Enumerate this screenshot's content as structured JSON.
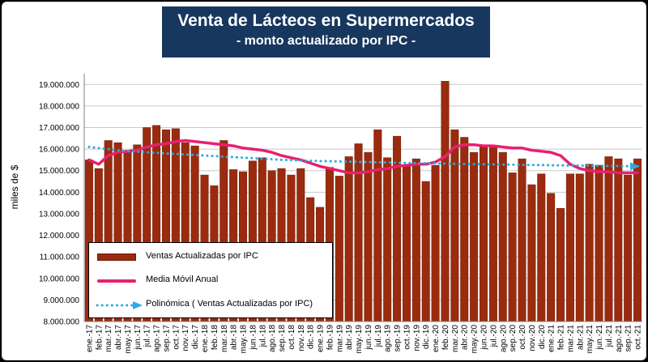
{
  "title": "Venta de Lácteos en Supermercados",
  "subtitle": "- monto actualizado por IPC -",
  "colors": {
    "bars": "#9b2b0e",
    "bar_edge": "#6d1c06",
    "moving_avg": "#e8206f",
    "trend": "#29abe2",
    "title_bg": "#17375e"
  },
  "legend": {
    "bars_label": "Ventas Actualizadas por IPC",
    "moving_avg_label": "Media Móvil Anual",
    "trend_label": "Polinómica ( Ventas Actualizadas por IPC)"
  },
  "chart_data": {
    "type": "bar",
    "title": "Venta de Lácteos en Supermercados",
    "subtitle": "- monto actualizado por IPC -",
    "xlabel": "",
    "ylabel": "miles de $",
    "ylim": [
      8000000,
      19500000
    ],
    "yticks": [
      8000000,
      9000000,
      10000000,
      11000000,
      12000000,
      13000000,
      14000000,
      15000000,
      16000000,
      17000000,
      18000000,
      19000000
    ],
    "ytick_labels": [
      "8.000.000",
      "9.000.000",
      "10.000.000",
      "11.000.000",
      "12.000.000",
      "13.000.000",
      "14.000.000",
      "15.000.000",
      "16.000.000",
      "17.000.000",
      "18.000.000",
      "19.000.000"
    ],
    "grid": true,
    "legend_position": "bottom-left",
    "categories": [
      "ene.-17",
      "feb.-17",
      "mar.-17",
      "abr.-17",
      "may.-17",
      "jun.-17",
      "jul.-17",
      "ago.-17",
      "sep.-17",
      "oct.-17",
      "nov.-17",
      "dic.-17",
      "ene.-18",
      "feb.-18",
      "mar.-18",
      "abr.-18",
      "may.-18",
      "jun.-18",
      "jul.-18",
      "ago.-18",
      "sep.-18",
      "oct.-18",
      "nov.-18",
      "dic.-18",
      "ene.-19",
      "feb.-19",
      "mar.-19",
      "abr.-19",
      "may.-19",
      "jun.-19",
      "jul.-19",
      "ago.-19",
      "sep.-19",
      "oct.-19",
      "nov.-19",
      "dic.-19",
      "ene.-20",
      "feb.-20",
      "mar.-20",
      "abr.-20",
      "may.-20",
      "jun.-20",
      "jul.-20",
      "ago.-20",
      "sep.-20",
      "oct.-20",
      "nov.-20",
      "dic.-20",
      "ene.-21",
      "feb.-21",
      "mar.-21",
      "abr.-21",
      "may.-21",
      "jun.-21",
      "jul.-21",
      "ago.-21",
      "sep.-21",
      "oct.-21"
    ],
    "series": [
      {
        "name": "Ventas Actualizadas por IPC",
        "type": "bar",
        "values": [
          15500000,
          15100000,
          16400000,
          16300000,
          15900000,
          16200000,
          17000000,
          17100000,
          16900000,
          16950000,
          16300000,
          16150000,
          14800000,
          14300000,
          16400000,
          15050000,
          14950000,
          15450000,
          15600000,
          15000000,
          15100000,
          14800000,
          15100000,
          13750000,
          13300000,
          15150000,
          14750000,
          15650000,
          16250000,
          15850000,
          16900000,
          15600000,
          16600000,
          15250000,
          15550000,
          14500000,
          15250000,
          19150000,
          16900000,
          16550000,
          15850000,
          16150000,
          16150000,
          15850000,
          14900000,
          15550000,
          14350000,
          14850000,
          13950000,
          13250000,
          14850000,
          14850000,
          15300000,
          15250000,
          15650000,
          15550000,
          14800000,
          15550000
        ]
      },
      {
        "name": "Media Móvil Anual",
        "type": "line",
        "values": [
          15500000,
          15300000,
          15700000,
          15850000,
          15900000,
          15950000,
          16100000,
          16200000,
          16250000,
          16350000,
          16400000,
          16350000,
          16300000,
          16250000,
          16200000,
          16150000,
          16050000,
          16000000,
          15950000,
          15850000,
          15700000,
          15600000,
          15500000,
          15350000,
          15200000,
          15100000,
          15000000,
          14900000,
          14900000,
          14950000,
          15050000,
          15100000,
          15200000,
          15250000,
          15300000,
          15300000,
          15400000,
          15650000,
          16100000,
          16200000,
          16200000,
          16150000,
          16150000,
          16100000,
          16050000,
          16050000,
          15950000,
          15900000,
          15850000,
          15700000,
          15300000,
          15100000,
          15000000,
          14950000,
          14950000,
          14900000,
          14900000,
          14900000
        ]
      },
      {
        "name": "Polinómica ( Ventas Actualizadas por IPC)",
        "type": "trendline",
        "values": [
          16100000,
          16050000,
          16000000,
          15950000,
          15900000,
          15880000,
          15850000,
          15830000,
          15800000,
          15780000,
          15750000,
          15730000,
          15700000,
          15680000,
          15650000,
          15630000,
          15600000,
          15580000,
          15550000,
          15530000,
          15500000,
          15490000,
          15470000,
          15460000,
          15450000,
          15440000,
          15430000,
          15420000,
          15410000,
          15400000,
          15390000,
          15380000,
          15370000,
          15360000,
          15350000,
          15350000,
          15340000,
          15330000,
          15320000,
          15310000,
          15300000,
          15300000,
          15290000,
          15280000,
          15280000,
          15270000,
          15260000,
          15260000,
          15250000,
          15250000,
          15240000,
          15240000,
          15230000,
          15230000,
          15220000,
          15220000,
          15210000,
          15200000
        ]
      }
    ]
  }
}
